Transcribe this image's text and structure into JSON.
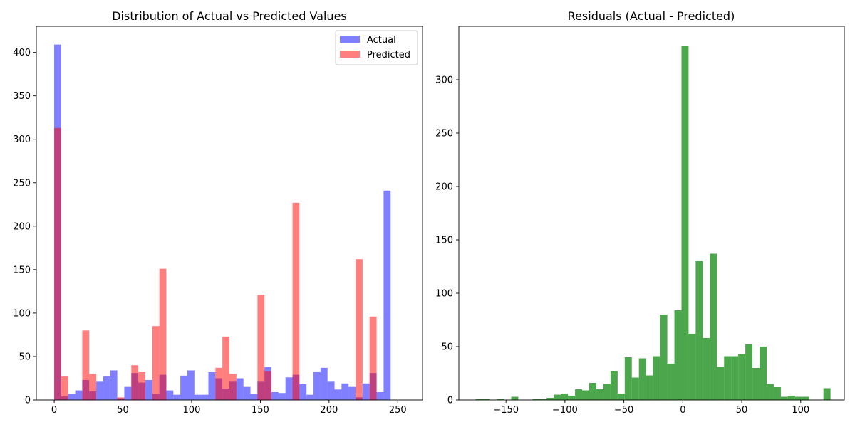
{
  "chart_data": [
    {
      "type": "bar",
      "subtype": "histogram",
      "title": "Distribution of Actual vs Predicted Values",
      "xlabel": "",
      "ylabel": "",
      "xlim": [
        -13,
        268
      ],
      "ylim": [
        0,
        430
      ],
      "xticks": [
        0,
        50,
        100,
        150,
        200,
        250
      ],
      "yticks": [
        0,
        50,
        100,
        150,
        200,
        250,
        300,
        350,
        400
      ],
      "grid": false,
      "legend": "top-right",
      "bin_start": 0,
      "bin_width": 5.1,
      "series": [
        {
          "name": "Actual",
          "color": "#0000ff",
          "opacity": 0.5,
          "values": [
            409,
            4,
            7,
            11,
            23,
            10,
            21,
            27,
            34,
            2,
            15,
            31,
            20,
            23,
            7,
            29,
            11,
            6,
            28,
            34,
            6,
            6,
            32,
            25,
            13,
            21,
            25,
            15,
            7,
            21,
            38,
            9,
            8,
            26,
            29,
            18,
            6,
            32,
            37,
            21,
            12,
            19,
            15,
            3,
            19,
            31,
            9,
            241
          ]
        },
        {
          "name": "Predicted",
          "color": "#ff0000",
          "opacity": 0.5,
          "values": [
            313,
            27,
            0,
            0,
            80,
            30,
            0,
            0,
            0,
            3,
            0,
            40,
            32,
            0,
            85,
            151,
            0,
            0,
            0,
            0,
            0,
            0,
            0,
            37,
            73,
            30,
            0,
            0,
            0,
            121,
            33,
            0,
            0,
            0,
            227,
            0,
            0,
            0,
            0,
            0,
            0,
            0,
            0,
            162,
            0,
            96,
            0,
            0
          ]
        }
      ]
    },
    {
      "type": "bar",
      "subtype": "histogram",
      "title": "Residuals (Actual - Predicted)",
      "xlabel": "",
      "ylabel": "",
      "xlim": [
        -190,
        137
      ],
      "ylim": [
        0,
        350
      ],
      "xticks": [
        -150,
        -100,
        -50,
        0,
        50,
        100
      ],
      "yticks": [
        0,
        50,
        100,
        150,
        200,
        250,
        300
      ],
      "grid": false,
      "bin_start": -175.7,
      "bin_width": 6.02,
      "series": [
        {
          "name": "",
          "color": "#008000",
          "opacity": 0.7,
          "values": [
            1,
            1,
            0,
            1,
            0,
            3,
            0,
            0,
            1,
            1,
            2,
            5,
            6,
            4,
            10,
            9,
            16,
            10,
            15,
            27,
            6,
            40,
            21,
            39,
            23,
            41,
            80,
            34,
            84,
            332,
            62,
            130,
            58,
            137,
            31,
            41,
            41,
            43,
            52,
            30,
            50,
            15,
            12,
            3,
            4,
            3,
            3,
            0,
            0,
            11
          ]
        }
      ]
    }
  ]
}
